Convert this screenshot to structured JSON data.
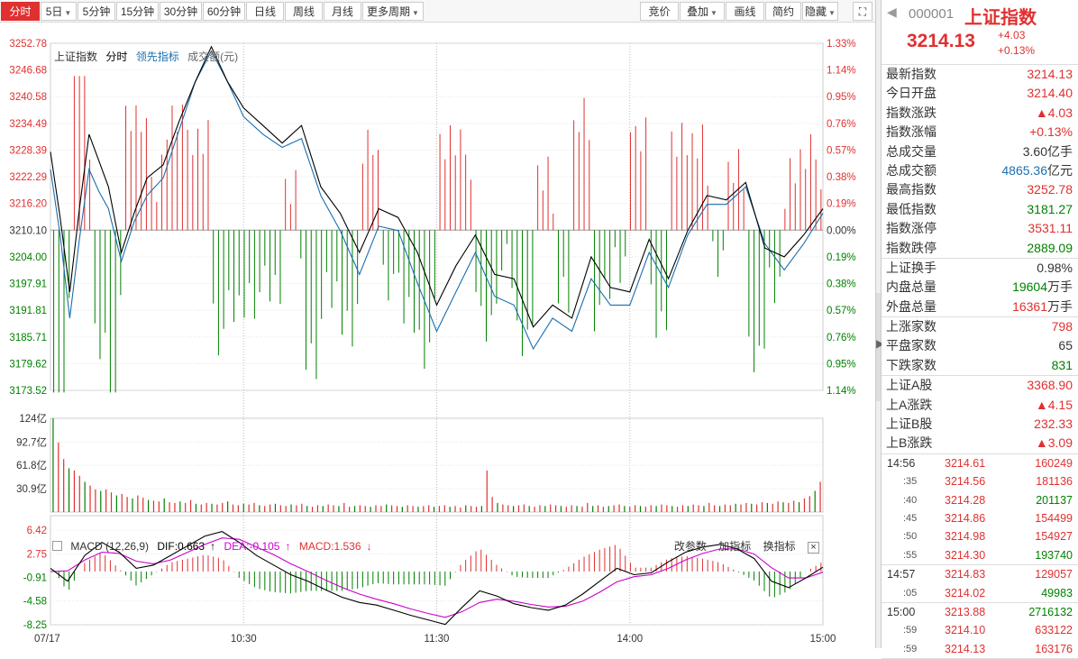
{
  "toolbar": {
    "left": [
      {
        "label": "分时",
        "active": true,
        "dropdown": false
      },
      {
        "label": "5日",
        "active": false,
        "dropdown": true
      },
      {
        "label": "5分钟",
        "active": false,
        "dropdown": false
      },
      {
        "label": "15分钟",
        "active": false,
        "dropdown": false
      },
      {
        "label": "30分钟",
        "active": false,
        "dropdown": false
      },
      {
        "label": "60分钟",
        "active": false,
        "dropdown": false
      },
      {
        "label": "日线",
        "active": false,
        "dropdown": false
      },
      {
        "label": "周线",
        "active": false,
        "dropdown": false
      },
      {
        "label": "月线",
        "active": false,
        "dropdown": false
      },
      {
        "label": "更多周期",
        "active": false,
        "dropdown": true
      }
    ],
    "right": [
      {
        "label": "竞价",
        "dropdown": false
      },
      {
        "label": "叠加",
        "dropdown": true
      },
      {
        "label": "画线",
        "dropdown": false
      },
      {
        "label": "简约",
        "dropdown": false
      },
      {
        "label": "隐藏",
        "dropdown": true
      }
    ],
    "fullscreen_icon": "fullscreen-icon"
  },
  "legend": {
    "index_name": "上证指数",
    "mode": "分时",
    "lead_indicator": "领先指标",
    "volume_label": "成交额(元)"
  },
  "colors": {
    "up": "#e03030",
    "down": "#008000",
    "price_line": "#000000",
    "lead_line": "#1a6fb0",
    "dea_line": "#cc00cc",
    "accent": "#e03030"
  },
  "chart_data": {
    "type": "line",
    "prev_close": 3210.1,
    "price_ticks_left": [
      "3252.78",
      "3246.68",
      "3240.58",
      "3234.49",
      "3228.39",
      "3222.29",
      "3216.20",
      "3210.10",
      "3204.00",
      "3197.91",
      "3191.81",
      "3185.71",
      "3179.62",
      "3173.52"
    ],
    "price_ticks_right": [
      "1.33%",
      "1.14%",
      "0.95%",
      "0.76%",
      "0.57%",
      "0.38%",
      "0.19%",
      "0.00%",
      "0.19%",
      "0.38%",
      "0.57%",
      "0.76%",
      "0.95%",
      "1.14%"
    ],
    "ylim": [
      3173.52,
      3252.78
    ],
    "x_ticks": [
      "07/17",
      "10:30",
      "11:30",
      "14:00",
      "15:00"
    ],
    "price_series": {
      "name": "上证指数",
      "x": [
        0,
        3,
        6,
        9,
        12,
        15,
        18,
        22,
        26,
        30,
        35,
        40,
        45,
        50,
        55,
        60,
        66,
        72,
        78,
        84,
        90,
        96,
        102,
        108,
        114,
        120,
        126,
        132,
        138,
        144,
        150,
        156,
        162,
        168,
        174,
        180,
        186,
        192,
        198,
        204,
        210,
        216,
        222,
        228,
        234,
        240
      ],
      "values": [
        3228,
        3213,
        3196,
        3215,
        3232,
        3226,
        3220,
        3205,
        3214,
        3222,
        3225,
        3235,
        3244,
        3252,
        3244,
        3238,
        3234,
        3230,
        3234,
        3220,
        3214,
        3205,
        3215,
        3213,
        3205,
        3193,
        3202,
        3209,
        3200,
        3199,
        3188,
        3193,
        3190,
        3204,
        3197,
        3196,
        3208,
        3199,
        3210,
        3218,
        3217,
        3221,
        3206,
        3204,
        3209,
        3215
      ]
    },
    "lead_series": {
      "name": "领先指标",
      "x": [
        0,
        3,
        6,
        9,
        12,
        15,
        18,
        22,
        26,
        30,
        35,
        40,
        45,
        50,
        55,
        60,
        66,
        72,
        78,
        84,
        90,
        96,
        102,
        108,
        114,
        120,
        126,
        132,
        138,
        144,
        150,
        156,
        162,
        168,
        174,
        180,
        186,
        192,
        198,
        204,
        210,
        216,
        222,
        228,
        234,
        240
      ],
      "values": [
        3224,
        3209,
        3190,
        3208,
        3224,
        3219,
        3215,
        3203,
        3212,
        3218,
        3222,
        3233,
        3244,
        3251,
        3244,
        3236,
        3232,
        3229,
        3231,
        3218,
        3210,
        3200,
        3211,
        3210,
        3198,
        3187,
        3196,
        3205,
        3195,
        3193,
        3183,
        3190,
        3187,
        3199,
        3193,
        3193,
        3205,
        3197,
        3209,
        3216,
        3216,
        3220,
        3207,
        3201,
        3207,
        3214
      ]
    },
    "volume": {
      "label": "成交额(元)",
      "ticks": [
        "124亿",
        "92.7亿",
        "61.8亿",
        "30.9亿"
      ],
      "ylim": [
        0,
        124
      ],
      "values": [
        124,
        92,
        70,
        58,
        55,
        48,
        40,
        35,
        30,
        28,
        30,
        26,
        22,
        24,
        20,
        18,
        22,
        19,
        16,
        15,
        14,
        18,
        13,
        12,
        14,
        12,
        16,
        11,
        10,
        12,
        11,
        10,
        12,
        14,
        10,
        9,
        11,
        10,
        12,
        9,
        8,
        10,
        11,
        9,
        8,
        10,
        9,
        11,
        8,
        7,
        9,
        8,
        10,
        9,
        8,
        12,
        7,
        8,
        9,
        8,
        7,
        9,
        8,
        10,
        9,
        8,
        7,
        9,
        8,
        7,
        8,
        9,
        7,
        8,
        9,
        7,
        8,
        6,
        9,
        8,
        7,
        8,
        55,
        20,
        12,
        10,
        9,
        8,
        9,
        10,
        8,
        7,
        9,
        8,
        10,
        9,
        8,
        7,
        9,
        8,
        7,
        12,
        8,
        9,
        7,
        8,
        9,
        10,
        8,
        7,
        9,
        8,
        7,
        9,
        8,
        10,
        9,
        8,
        7,
        9,
        8,
        10,
        9,
        8,
        12,
        9,
        8,
        10,
        9,
        11,
        10,
        12,
        11,
        10,
        13,
        12,
        11,
        14,
        13,
        12,
        15,
        13,
        18,
        21,
        28,
        40
      ]
    },
    "macd": {
      "params": "MACD (12,26,9)",
      "dif_label": "DIF:0.663",
      "dea_label": "DEA:-0.105",
      "macd_label": "MACD:1.536",
      "ticks": [
        "6.42",
        "2.75",
        "-0.91",
        "-4.58",
        "-8.25"
      ],
      "ylim": [
        -8.25,
        6.42
      ],
      "dif": [
        0.5,
        -1.5,
        2.5,
        4.5,
        3.0,
        0.5,
        1.0,
        2.5,
        4.0,
        5.5,
        6.2,
        4.5,
        2.5,
        1.0,
        -0.5,
        -1.5,
        -2.8,
        -4.0,
        -4.8,
        -5.2,
        -6.0,
        -6.8,
        -7.5,
        -8.2,
        -5.5,
        -3.0,
        -3.8,
        -5.0,
        -5.6,
        -6.0,
        -5.2,
        -3.5,
        -1.5,
        0.5,
        -0.5,
        -0.2,
        1.5,
        3.0,
        3.8,
        4.2,
        3.5,
        2.0,
        -1.5,
        -2.5,
        -1.0,
        0.66
      ],
      "dea": [
        0.0,
        0.1,
        1.8,
        3.0,
        2.8,
        1.6,
        1.2,
        1.8,
        3.0,
        4.2,
        5.2,
        5.0,
        3.8,
        2.6,
        1.2,
        0.0,
        -1.3,
        -2.5,
        -3.5,
        -4.3,
        -5.0,
        -5.8,
        -6.5,
        -7.1,
        -6.2,
        -4.8,
        -4.3,
        -4.6,
        -5.1,
        -5.5,
        -5.4,
        -4.6,
        -3.2,
        -1.6,
        -0.8,
        -0.5,
        0.5,
        1.8,
        2.8,
        3.5,
        3.5,
        2.7,
        0.6,
        -1.0,
        -1.0,
        -0.105
      ]
    }
  },
  "macd_tools": [
    "改参数",
    "加指标",
    "换指标"
  ],
  "side": {
    "back_icon": "back-arrow-icon",
    "code": "000001",
    "name": "上证指数",
    "price": "3214.13",
    "change": "+4.03",
    "change_pct": "+0.13%",
    "stats1": [
      {
        "label": "最新指数",
        "value": "3214.13",
        "tone": "red",
        "unit": ""
      },
      {
        "label": "今日开盘",
        "value": "3214.40",
        "tone": "red",
        "unit": ""
      },
      {
        "label": "指数涨跌",
        "value": "▲4.03",
        "tone": "red",
        "unit": ""
      },
      {
        "label": "指数涨幅",
        "value": "+0.13%",
        "tone": "red",
        "unit": ""
      },
      {
        "label": "总成交量",
        "value": "3.60",
        "tone": "black",
        "unit": "亿手"
      },
      {
        "label": "总成交额",
        "value": "4865.36",
        "tone": "blue",
        "unit": "亿元"
      },
      {
        "label": "最高指数",
        "value": "3252.78",
        "tone": "red",
        "unit": ""
      },
      {
        "label": "最低指数",
        "value": "3181.27",
        "tone": "green",
        "unit": ""
      },
      {
        "label": "指数涨停",
        "value": "3531.11",
        "tone": "red",
        "unit": ""
      },
      {
        "label": "指数跌停",
        "value": "2889.09",
        "tone": "green",
        "unit": ""
      }
    ],
    "stats2": [
      {
        "label": "上证换手",
        "value": "0.98%",
        "tone": "black",
        "unit": ""
      },
      {
        "label": "内盘总量",
        "value": "19604",
        "tone": "green",
        "unit": "万手"
      },
      {
        "label": "外盘总量",
        "value": "16361",
        "tone": "red",
        "unit": "万手"
      }
    ],
    "stats3": [
      {
        "label": "上涨家数",
        "value": "798",
        "tone": "red",
        "unit": ""
      },
      {
        "label": "平盘家数",
        "value": "65",
        "tone": "black",
        "unit": ""
      },
      {
        "label": "下跌家数",
        "value": "831",
        "tone": "green",
        "unit": ""
      }
    ],
    "stats4": [
      {
        "label": "上证A股",
        "value": "3368.90",
        "tone": "red",
        "unit": ""
      },
      {
        "label": "上A涨跌",
        "value": "▲4.15",
        "tone": "red",
        "unit": ""
      },
      {
        "label": "上证B股",
        "value": "232.33",
        "tone": "red",
        "unit": ""
      },
      {
        "label": "上B涨跌",
        "value": "▲3.09",
        "tone": "red",
        "unit": ""
      }
    ],
    "trades": [
      [
        {
          "time": "14:56",
          "sub": false,
          "price": "3214.61",
          "vol": "160249",
          "vol_tone": "red"
        },
        {
          "time": ":35",
          "sub": true,
          "price": "3214.56",
          "vol": "181136",
          "vol_tone": "red"
        },
        {
          "time": ":40",
          "sub": true,
          "price": "3214.28",
          "vol": "201137",
          "vol_tone": "green"
        },
        {
          "time": ":45",
          "sub": true,
          "price": "3214.86",
          "vol": "154499",
          "vol_tone": "red"
        },
        {
          "time": ":50",
          "sub": true,
          "price": "3214.98",
          "vol": "154927",
          "vol_tone": "red"
        },
        {
          "time": ":55",
          "sub": true,
          "price": "3214.30",
          "vol": "193740",
          "vol_tone": "green"
        }
      ],
      [
        {
          "time": "14:57",
          "sub": false,
          "price": "3214.83",
          "vol": "129057",
          "vol_tone": "red"
        },
        {
          "time": ":05",
          "sub": true,
          "price": "3214.02",
          "vol": "49983",
          "vol_tone": "green"
        }
      ],
      [
        {
          "time": "15:00",
          "sub": false,
          "price": "3213.88",
          "vol": "2716132",
          "vol_tone": "green"
        },
        {
          "time": ":59",
          "sub": true,
          "price": "3214.10",
          "vol": "633122",
          "vol_tone": "red"
        },
        {
          "time": ":59",
          "sub": true,
          "price": "3214.13",
          "vol": "163176",
          "vol_tone": "red"
        }
      ]
    ]
  }
}
